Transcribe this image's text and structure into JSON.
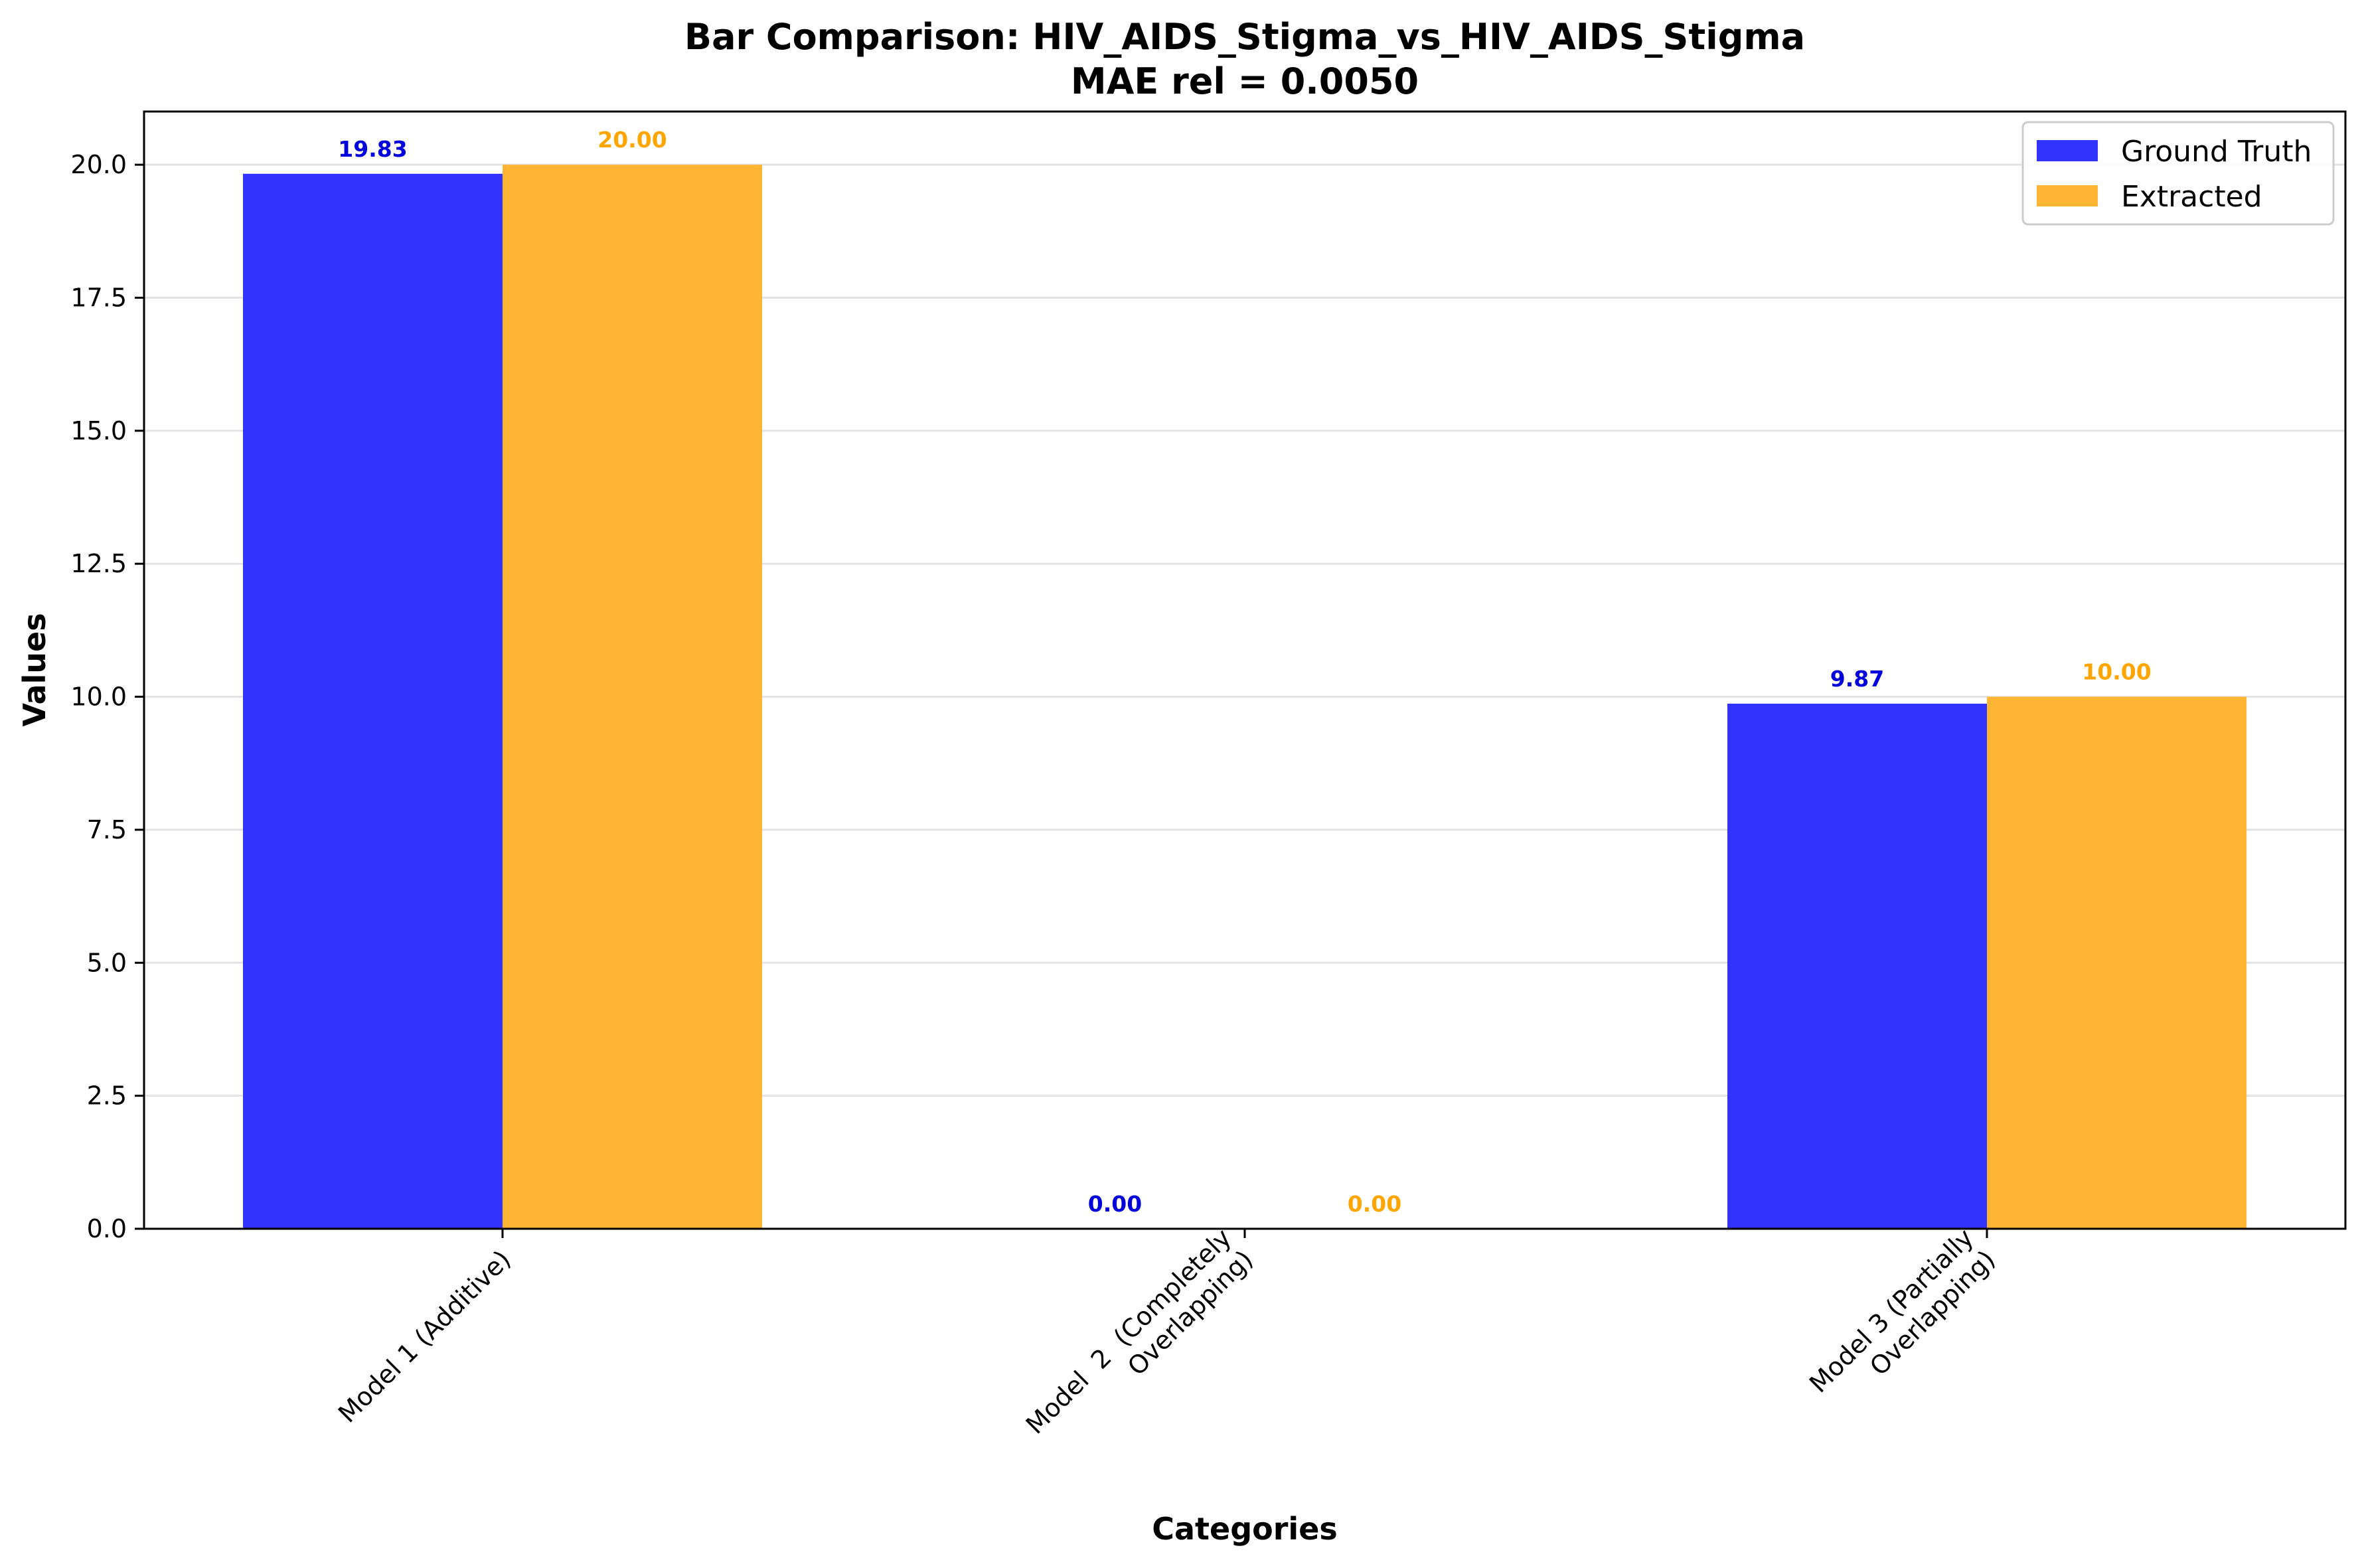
{
  "chart_data": {
    "type": "bar",
    "title": "Bar Comparison: HIV_AIDS_Stigma_vs_HIV_AIDS_Stigma",
    "subtitle": "MAE rel = 0.0050",
    "xlabel": "Categories",
    "ylabel": "Values",
    "categories": [
      [
        "Model 1 (Additive)"
      ],
      [
        "Model  2  (Completely",
        "Overlapping)"
      ],
      [
        "Model 3 (Partially",
        "Overlapping)"
      ]
    ],
    "series": [
      {
        "name": "Ground Truth",
        "color": "#3333ff",
        "label_color": "#0000dd",
        "values": [
          19.83,
          0.0,
          9.87
        ],
        "labels": [
          "19.83",
          "0.00",
          "9.87"
        ]
      },
      {
        "name": "Extracted",
        "color": "#ffb533",
        "label_color": "#ffa500",
        "values": [
          20.0,
          0.0,
          10.0
        ],
        "labels": [
          "20.00",
          "0.00",
          "10.00"
        ]
      }
    ],
    "ylim": [
      0,
      21
    ],
    "yticks": [
      0.0,
      2.5,
      5.0,
      7.5,
      10.0,
      12.5,
      15.0,
      17.5,
      20.0
    ],
    "ytick_labels": [
      "0.0",
      "2.5",
      "5.0",
      "7.5",
      "10.0",
      "12.5",
      "15.0",
      "17.5",
      "20.0"
    ],
    "grid": "y",
    "legend_position": "top-right"
  }
}
